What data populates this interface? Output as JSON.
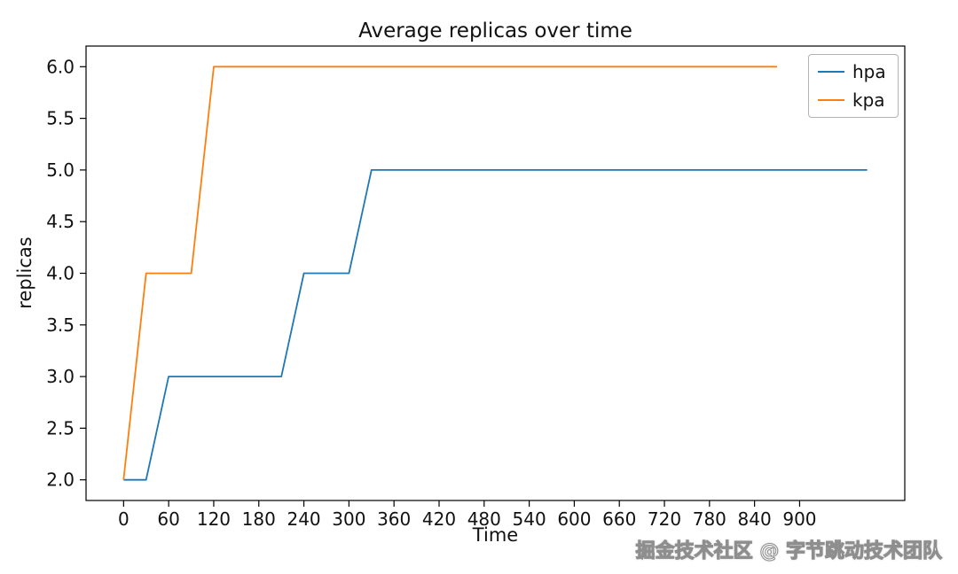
{
  "chart_data": {
    "type": "line",
    "title": "Average replicas over time",
    "xlabel": "Time",
    "ylabel": "replicas",
    "xlim": [
      -50,
      1040
    ],
    "ylim": [
      1.8,
      6.2
    ],
    "x_ticks": [
      0,
      60,
      120,
      180,
      240,
      300,
      360,
      420,
      480,
      540,
      600,
      660,
      720,
      780,
      840,
      900
    ],
    "y_ticks": [
      2.0,
      2.5,
      3.0,
      3.5,
      4.0,
      4.5,
      5.0,
      5.5,
      6.0
    ],
    "y_tick_labels": [
      "2.0",
      "2.5",
      "3.0",
      "3.5",
      "4.0",
      "4.5",
      "5.0",
      "5.5",
      "6.0"
    ],
    "grid": false,
    "legend_position": "upper right",
    "series": [
      {
        "name": "hpa",
        "color": "#1f77b4",
        "points": [
          [
            0,
            2
          ],
          [
            30,
            2
          ],
          [
            60,
            3
          ],
          [
            210,
            3
          ],
          [
            240,
            4
          ],
          [
            300,
            4
          ],
          [
            330,
            5
          ],
          [
            990,
            5
          ]
        ]
      },
      {
        "name": "kpa",
        "color": "#ff7f0e",
        "points": [
          [
            0,
            2
          ],
          [
            30,
            4
          ],
          [
            90,
            4
          ],
          [
            120,
            6
          ],
          [
            870,
            6
          ]
        ]
      }
    ]
  },
  "watermark": {
    "text": "掘金技术社区 @ 字节跳动技术团队"
  }
}
